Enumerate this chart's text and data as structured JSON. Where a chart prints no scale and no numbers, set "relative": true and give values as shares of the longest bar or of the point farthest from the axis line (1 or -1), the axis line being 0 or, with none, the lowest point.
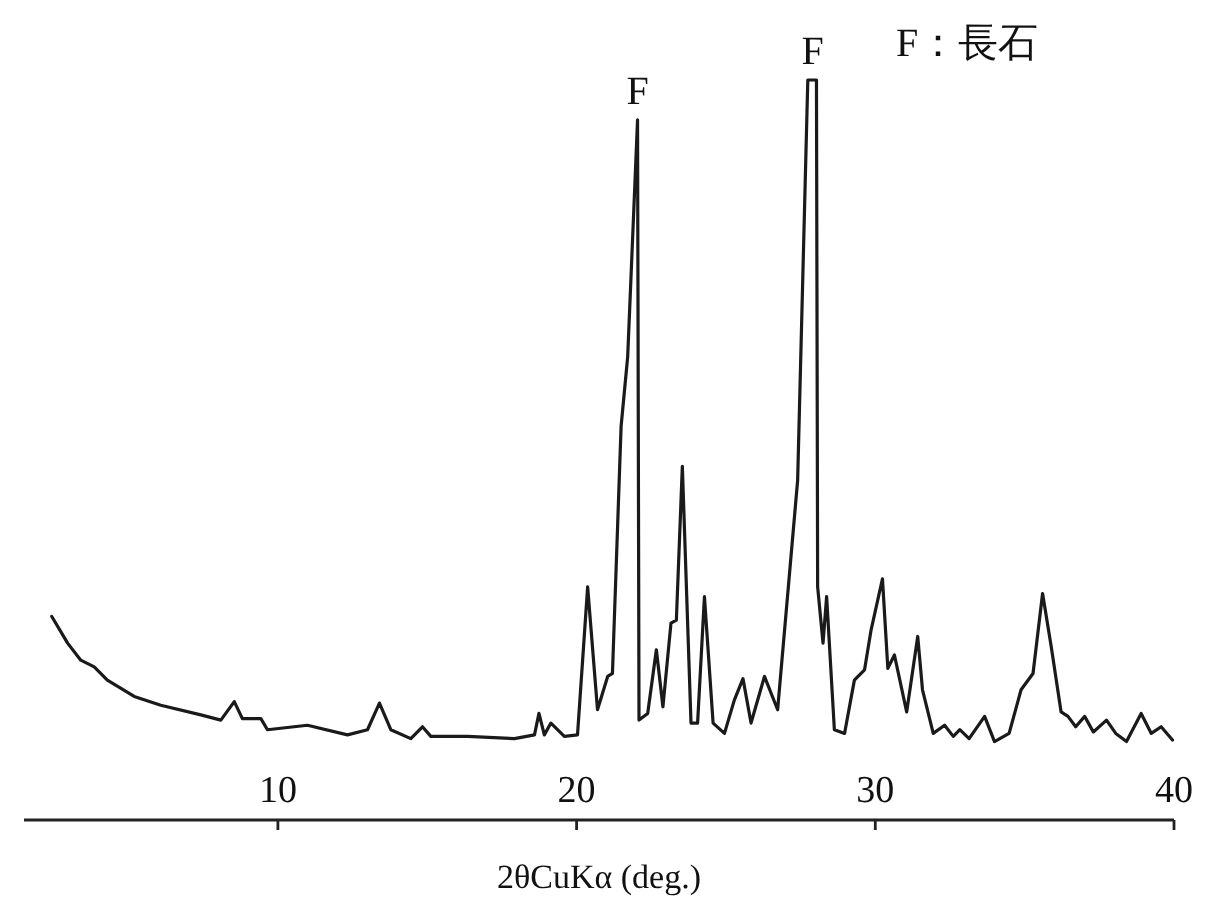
{
  "chart_data": {
    "type": "line",
    "relative": true,
    "xlabel": "2θCuKα (deg.)",
    "xlim": [
      1.5,
      40
    ],
    "xticks": [
      10,
      20,
      30,
      40
    ],
    "marker": "none",
    "line_style": "solid",
    "annotations": [
      {
        "text": "F",
        "x": 22.04,
        "y": 0.946
      },
      {
        "text": "F",
        "x": 27.9,
        "y": 1.0
      },
      "F：長石"
    ],
    "series": [
      {
        "color": "#1a1a1a",
        "x": [
          2.43,
          2.96,
          3.4,
          3.85,
          4.29,
          5.19,
          6.08,
          7.42,
          8.09,
          8.54,
          8.81,
          9.43,
          9.65,
          10.99,
          12.33,
          13.0,
          13.4,
          13.78,
          14.45,
          14.84,
          15.12,
          16.35,
          17.92,
          18.59,
          18.74,
          18.92,
          19.14,
          19.59,
          20.03,
          20.37,
          20.7,
          21.04,
          21.2,
          21.49,
          21.71,
          22.04,
          22.09,
          22.38,
          22.67,
          22.89,
          23.16,
          23.34,
          23.54,
          23.83,
          24.05,
          24.28,
          24.57,
          24.95,
          25.28,
          25.57,
          25.84,
          26.29,
          26.73,
          27.4,
          27.74,
          28.03,
          28.07,
          28.25,
          28.37,
          28.63,
          28.97,
          29.3,
          29.64,
          29.86,
          30.24,
          30.42,
          30.64,
          31.05,
          31.42,
          31.58,
          31.94,
          32.32,
          32.61,
          32.83,
          33.14,
          33.66,
          33.99,
          34.48,
          34.88,
          35.28,
          35.6,
          35.89,
          36.22,
          36.45,
          36.71,
          37.01,
          37.3,
          37.74,
          38.05,
          38.41,
          38.9,
          39.24,
          39.57,
          39.95
        ],
        "values": [
          0.275,
          0.239,
          0.216,
          0.207,
          0.189,
          0.167,
          0.155,
          0.142,
          0.135,
          0.16,
          0.137,
          0.137,
          0.122,
          0.128,
          0.115,
          0.122,
          0.158,
          0.122,
          0.11,
          0.126,
          0.113,
          0.113,
          0.11,
          0.115,
          0.144,
          0.115,
          0.131,
          0.113,
          0.115,
          0.315,
          0.149,
          0.194,
          0.198,
          0.532,
          0.626,
          0.946,
          0.135,
          0.144,
          0.23,
          0.153,
          0.266,
          0.27,
          0.478,
          0.131,
          0.131,
          0.302,
          0.131,
          0.117,
          0.162,
          0.191,
          0.131,
          0.194,
          0.149,
          0.459,
          1.0,
          1.0,
          0.315,
          0.239,
          0.302,
          0.122,
          0.117,
          0.189,
          0.203,
          0.257,
          0.326,
          0.205,
          0.223,
          0.146,
          0.248,
          0.176,
          0.117,
          0.128,
          0.113,
          0.122,
          0.11,
          0.14,
          0.106,
          0.117,
          0.176,
          0.198,
          0.306,
          0.234,
          0.146,
          0.14,
          0.126,
          0.14,
          0.119,
          0.135,
          0.117,
          0.106,
          0.144,
          0.117,
          0.126,
          0.108
        ]
      }
    ]
  }
}
